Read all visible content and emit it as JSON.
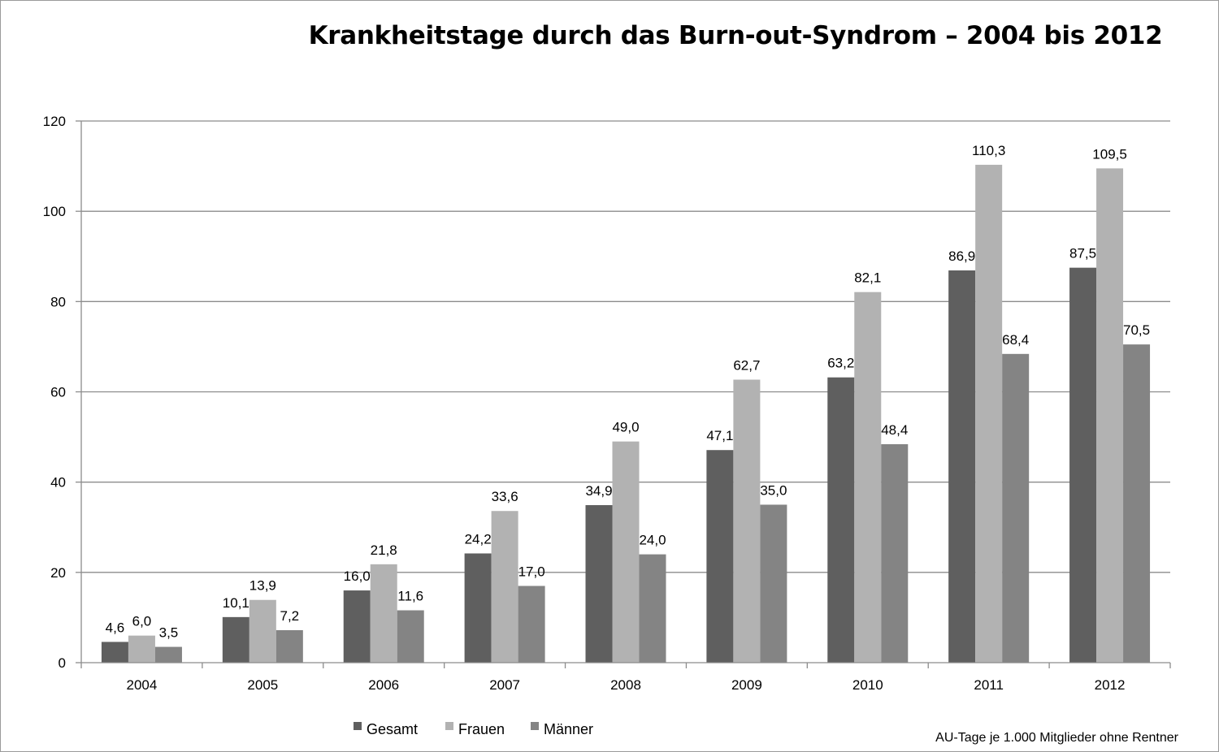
{
  "chart_data": {
    "type": "bar",
    "title": "Krankheitstage durch das Burn-out-Syndrom – 2004 bis 2012",
    "categories": [
      "2004",
      "2005",
      "2006",
      "2007",
      "2008",
      "2009",
      "2010",
      "2011",
      "2012"
    ],
    "series": [
      {
        "name": "Gesamt",
        "color": "#5f5f5f",
        "values": [
          4.6,
          10.1,
          16.0,
          24.2,
          34.9,
          47.1,
          63.2,
          86.9,
          87.5
        ],
        "labels": [
          "4,6",
          "10,1",
          "16,0",
          "24,2",
          "34,9",
          "47,1",
          "63,2",
          "86,9",
          "87,5"
        ]
      },
      {
        "name": "Frauen",
        "color": "#b2b2b2",
        "values": [
          6.0,
          13.9,
          21.8,
          33.6,
          49.0,
          62.7,
          82.1,
          110.3,
          109.5
        ],
        "labels": [
          "6,0",
          "13,9",
          "21,8",
          "33,6",
          "49,0",
          "62,7",
          "82,1",
          "110,3",
          "109,5"
        ]
      },
      {
        "name": "Männer",
        "color": "#848484",
        "values": [
          3.5,
          7.2,
          11.6,
          17.0,
          24.0,
          35.0,
          48.4,
          68.4,
          70.5
        ],
        "labels": [
          "3,5",
          "7,2",
          "11,6",
          "17,0",
          "24,0",
          "35,0",
          "48,4",
          "68,4",
          "70,5"
        ]
      }
    ],
    "ylim": [
      0,
      120
    ],
    "yticks": [
      "0",
      "20",
      "40",
      "60",
      "80",
      "100",
      "120"
    ],
    "grid": true,
    "legend_position": "bottom-center",
    "note": "AU-Tage je 1.000 Mitglieder ohne Rentner"
  }
}
